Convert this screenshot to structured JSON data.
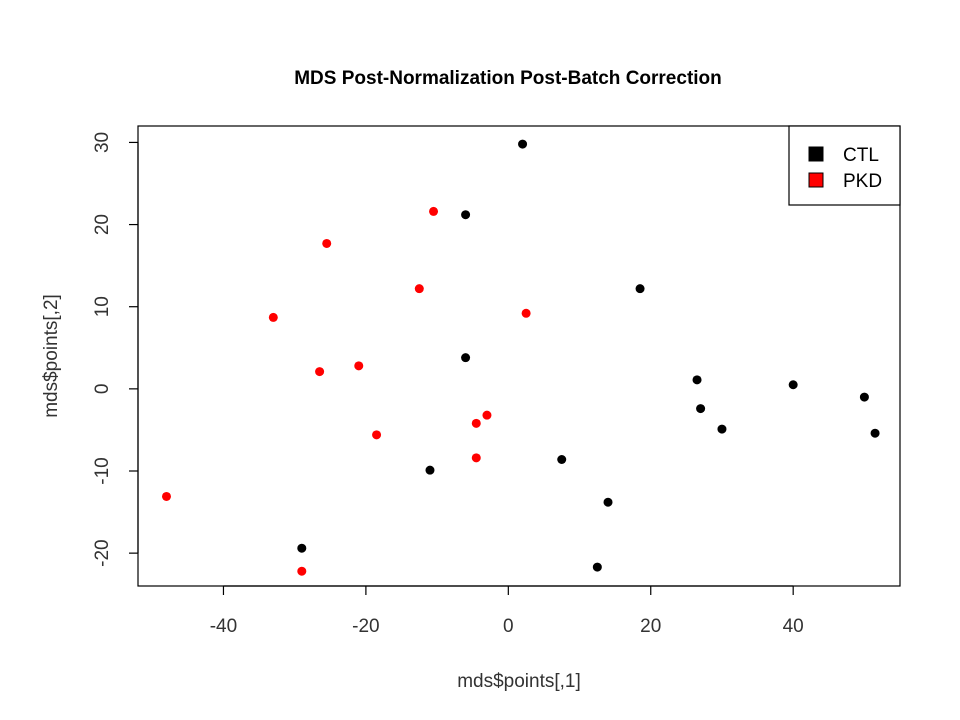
{
  "chart_data": {
    "type": "scatter",
    "title": "MDS Post-Normalization Post-Batch Correction",
    "xlabel": "mds$points[,1]",
    "ylabel": "mds$points[,2]",
    "xlim": [
      -52,
      55
    ],
    "ylim": [
      -24,
      32
    ],
    "xticks": [
      -40,
      -20,
      0,
      20,
      40
    ],
    "yticks": [
      -20,
      -10,
      0,
      10,
      20,
      30
    ],
    "xtick_labels": [
      "-40",
      "-20",
      "0",
      "20",
      "40"
    ],
    "ytick_labels": [
      "-20",
      "-10",
      "0",
      "10",
      "20",
      "30"
    ],
    "grid": false,
    "legend_position": "top-right",
    "series": [
      {
        "name": "CTL",
        "color": "#000000",
        "points": [
          {
            "x": 2,
            "y": 29.8
          },
          {
            "x": -6,
            "y": 21.2
          },
          {
            "x": 18.5,
            "y": 12.2
          },
          {
            "x": -6,
            "y": 3.8
          },
          {
            "x": 26.5,
            "y": 1.1
          },
          {
            "x": 40,
            "y": 0.5
          },
          {
            "x": 50,
            "y": -1
          },
          {
            "x": 27,
            "y": -2.4
          },
          {
            "x": 30,
            "y": -4.9
          },
          {
            "x": 51.5,
            "y": -5.4
          },
          {
            "x": -11,
            "y": -9.9
          },
          {
            "x": 7.5,
            "y": -8.6
          },
          {
            "x": 14,
            "y": -13.8
          },
          {
            "x": 12.5,
            "y": -21.7
          },
          {
            "x": -29,
            "y": -19.4
          }
        ]
      },
      {
        "name": "PKD",
        "color": "#ff0000",
        "points": [
          {
            "x": -10.5,
            "y": 21.6
          },
          {
            "x": -25.5,
            "y": 17.7
          },
          {
            "x": -12.5,
            "y": 12.2
          },
          {
            "x": 2.5,
            "y": 9.2
          },
          {
            "x": -33,
            "y": 8.7
          },
          {
            "x": -21,
            "y": 2.8
          },
          {
            "x": -26.5,
            "y": 2.1
          },
          {
            "x": -3,
            "y": -3.2
          },
          {
            "x": -4.5,
            "y": -4.2
          },
          {
            "x": -18.5,
            "y": -5.6
          },
          {
            "x": -4.5,
            "y": -8.4
          },
          {
            "x": -48,
            "y": -13.1
          },
          {
            "x": -29,
            "y": -22.2
          }
        ]
      }
    ]
  }
}
